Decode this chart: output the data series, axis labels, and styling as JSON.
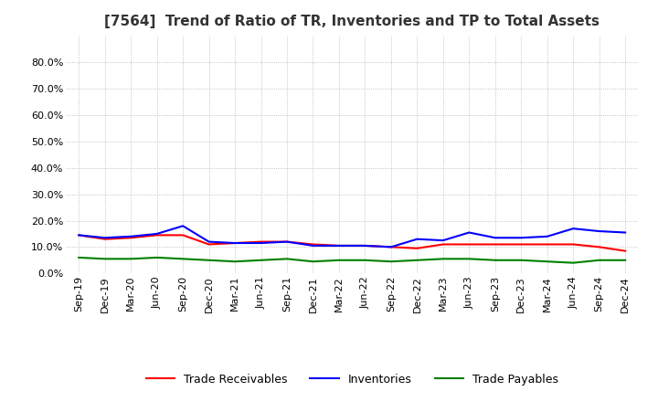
{
  "title": "[7564]  Trend of Ratio of TR, Inventories and TP to Total Assets",
  "x_labels": [
    "Sep-19",
    "Dec-19",
    "Mar-20",
    "Jun-20",
    "Sep-20",
    "Dec-20",
    "Mar-21",
    "Jun-21",
    "Sep-21",
    "Dec-21",
    "Mar-22",
    "Jun-22",
    "Sep-22",
    "Dec-22",
    "Mar-23",
    "Jun-23",
    "Sep-23",
    "Dec-23",
    "Mar-24",
    "Jun-24",
    "Sep-24",
    "Dec-24"
  ],
  "trade_receivables": [
    14.5,
    13.0,
    13.5,
    14.5,
    14.5,
    11.0,
    11.5,
    12.0,
    12.0,
    11.0,
    10.5,
    10.5,
    10.0,
    9.5,
    11.0,
    11.0,
    11.0,
    11.0,
    11.0,
    11.0,
    10.0,
    8.5
  ],
  "inventories": [
    14.5,
    13.5,
    14.0,
    15.0,
    18.0,
    12.0,
    11.5,
    11.5,
    12.0,
    10.5,
    10.5,
    10.5,
    10.0,
    13.0,
    12.5,
    15.5,
    13.5,
    13.5,
    14.0,
    17.0,
    16.0,
    15.5
  ],
  "trade_payables": [
    6.0,
    5.5,
    5.5,
    6.0,
    5.5,
    5.0,
    4.5,
    5.0,
    5.5,
    4.5,
    5.0,
    5.0,
    4.5,
    5.0,
    5.5,
    5.5,
    5.0,
    5.0,
    4.5,
    4.0,
    5.0,
    5.0
  ],
  "ylim_max": 90,
  "yticks": [
    0,
    10,
    20,
    30,
    40,
    50,
    60,
    70,
    80
  ],
  "ytick_labels": [
    "0.0%",
    "10.0%",
    "20.0%",
    "30.0%",
    "40.0%",
    "50.0%",
    "60.0%",
    "70.0%",
    "80.0%"
  ],
  "colors": {
    "trade_receivables": "#ff0000",
    "inventories": "#0000ff",
    "trade_payables": "#008000"
  },
  "legend_labels": [
    "Trade Receivables",
    "Inventories",
    "Trade Payables"
  ],
  "background_color": "#ffffff",
  "grid_color": "#aaaaaa",
  "title_fontsize": 11,
  "tick_fontsize": 8,
  "legend_fontsize": 9,
  "line_width": 1.5
}
